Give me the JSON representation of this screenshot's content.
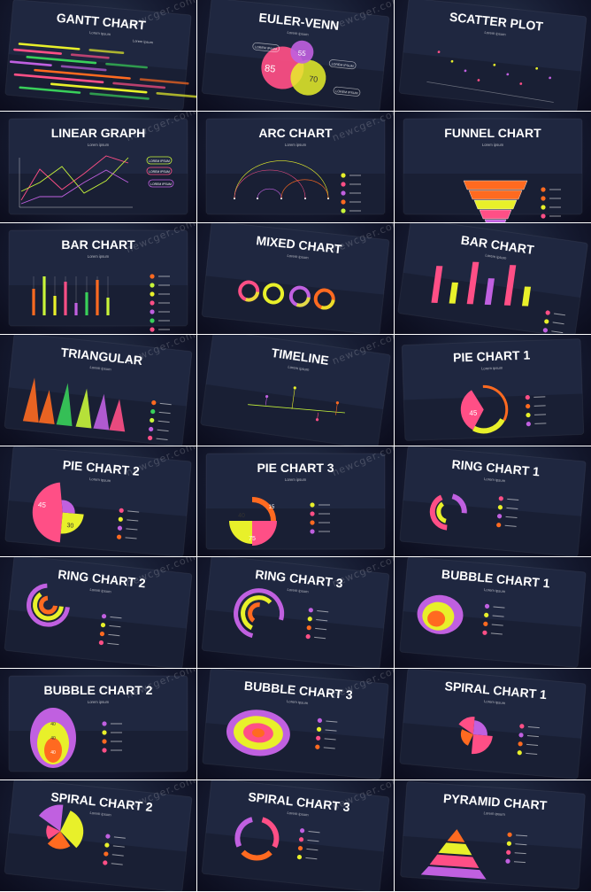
{
  "slides": [
    {
      "id": "gantt",
      "title": "GANTT CHART",
      "subtitle": "Lorem ipsum",
      "tilt": 5,
      "labels": [
        "Lorem ipsum"
      ]
    },
    {
      "id": "euler",
      "title": "EULER-VENN",
      "subtitle": "Lorem ipsum",
      "tilt": 6,
      "labels": [
        "LOREM IPSUM",
        "LOREM IPSUM",
        "LOREM IPSUM"
      ],
      "values": [
        "85",
        "55",
        "70"
      ]
    },
    {
      "id": "scatter",
      "title": "SCATTER PLOT",
      "subtitle": "Lorem ipsum",
      "tilt": 6
    },
    {
      "id": "linear",
      "title": "LINEAR GRAPH",
      "subtitle": "Lorem ipsum",
      "tilt": 0,
      "labels": [
        "LOREM IPSUM",
        "LOREM IPSUM",
        "LOREM IPSUM"
      ]
    },
    {
      "id": "arc",
      "title": "ARC CHART",
      "subtitle": "Lorem ipsum",
      "tilt": 0
    },
    {
      "id": "funnel",
      "title": "FUNNEL CHART",
      "subtitle": "Lorem ipsum",
      "tilt": 0
    },
    {
      "id": "bar1",
      "title": "BAR CHART",
      "subtitle": "Lorem ipsum",
      "tilt": 0
    },
    {
      "id": "mixed",
      "title": "MIXED CHART",
      "subtitle": "Lorem ipsum",
      "tilt": 6
    },
    {
      "id": "bar2",
      "title": "BAR CHART",
      "subtitle": "Lorem ipsum",
      "tilt": 8
    },
    {
      "id": "triangular",
      "title": "TRIANGULAR",
      "subtitle": "Lorem ipsum",
      "tilt": 6
    },
    {
      "id": "timeline",
      "title": "TIMELINE",
      "subtitle": "Lorem ipsum",
      "tilt": 8
    },
    {
      "id": "pie1",
      "title": "PIE CHART 1",
      "subtitle": "Lorem ipsum",
      "tilt": -2,
      "values": [
        "45"
      ]
    },
    {
      "id": "pie2",
      "title": "PIE CHART 2",
      "subtitle": "Lorem ipsum",
      "tilt": 5,
      "values": [
        "45",
        "30"
      ]
    },
    {
      "id": "pie3",
      "title": "PIE CHART 3",
      "subtitle": "Lorem ipsum",
      "tilt": 0,
      "values": [
        "40",
        "15",
        "75"
      ]
    },
    {
      "id": "ring1",
      "title": "RING CHART 1",
      "subtitle": "Lorem ipsum",
      "tilt": 5
    },
    {
      "id": "ring2",
      "title": "RING CHART 2",
      "subtitle": "Lorem ipsum",
      "tilt": 6
    },
    {
      "id": "ring3",
      "title": "RING CHART 3",
      "subtitle": "Lorem ipsum",
      "tilt": 6
    },
    {
      "id": "bubble1",
      "title": "BUBBLE CHART 1",
      "subtitle": "Lorem ipsum",
      "tilt": 5
    },
    {
      "id": "bubble2",
      "title": "BUBBLE CHART 2",
      "subtitle": "Lorem ipsum",
      "tilt": 0,
      "values": [
        "40",
        "40",
        "40"
      ]
    },
    {
      "id": "bubble3",
      "title": "BUBBLE CHART 3",
      "subtitle": "Lorem ipsum",
      "tilt": 5
    },
    {
      "id": "spiral1",
      "title": "SPIRAL CHART 1",
      "subtitle": "Lorem ipsum",
      "tilt": 5
    },
    {
      "id": "spiral2",
      "title": "SPIRAL CHART 2",
      "subtitle": "Lorem ipsum",
      "tilt": 6
    },
    {
      "id": "spiral3",
      "title": "SPIRAL CHART 3",
      "subtitle": "Lorem ipsum",
      "tilt": 6
    },
    {
      "id": "pyramid",
      "title": "PYRAMID CHART",
      "subtitle": "Lorem ipsum",
      "tilt": 4
    }
  ],
  "watermark": "newcger.com",
  "colors": {
    "pink": "#ff4f86",
    "yellow": "#e8f02a",
    "orange": "#ff6a20",
    "violet": "#c060e0",
    "green": "#39d05a",
    "lime": "#c8f53a",
    "background": "#151a30",
    "divider": "#ffffff"
  }
}
